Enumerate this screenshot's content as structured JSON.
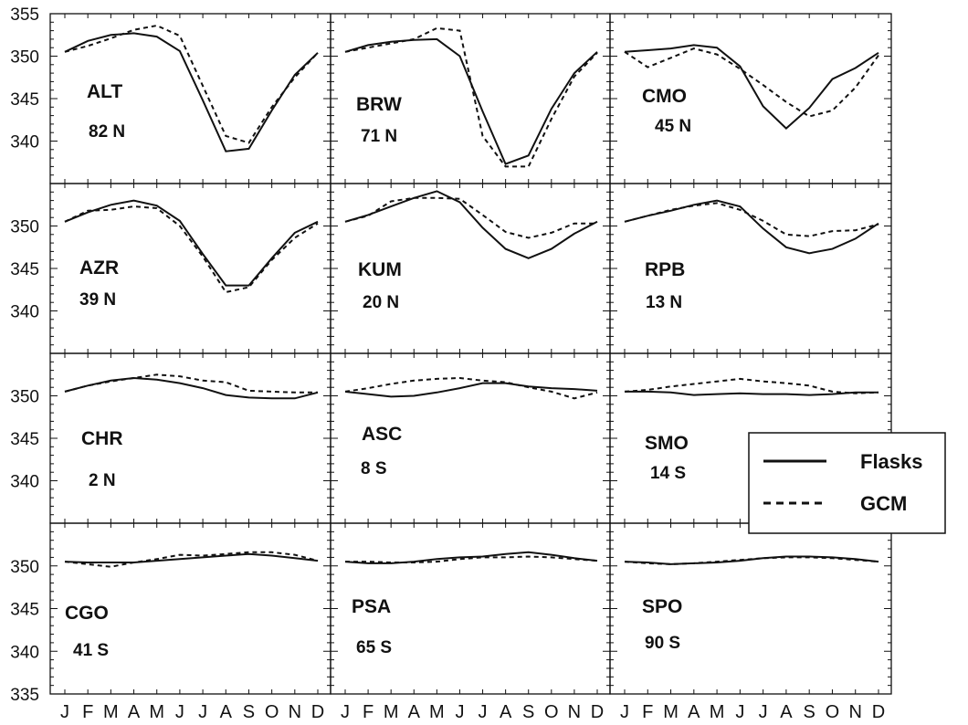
{
  "chart_data": {
    "type": "line",
    "layout": "4 rows x 3 columns of small-multiple panels",
    "months": [
      "J",
      "F",
      "M",
      "A",
      "M",
      "J",
      "J",
      "A",
      "S",
      "O",
      "N",
      "D"
    ],
    "ylim": [
      335,
      355
    ],
    "yticks": [
      335,
      340,
      345,
      350,
      355
    ],
    "grid": false,
    "legend": {
      "placement": "right, over SMO/SPO panels",
      "entries": [
        {
          "label": "Flasks",
          "style": "solid"
        },
        {
          "label": "GCM",
          "style": "dashed"
        }
      ]
    },
    "panels": [
      {
        "site": "ALT",
        "lat": "82 N",
        "flasks": [
          350.5,
          351.8,
          352.5,
          352.7,
          352.3,
          350.6,
          344.8,
          338.8,
          339.1,
          343.6,
          347.8,
          350.4
        ],
        "gcm": [
          350.5,
          351.2,
          352.1,
          353.1,
          353.6,
          352.4,
          346.5,
          340.6,
          339.8,
          344.0,
          347.5,
          350.4
        ]
      },
      {
        "site": "BRW",
        "lat": "71 N",
        "flasks": [
          350.5,
          351.3,
          351.7,
          351.9,
          352.0,
          350.0,
          343.5,
          337.3,
          338.3,
          343.8,
          348.0,
          350.5
        ],
        "gcm": [
          350.5,
          351.0,
          351.5,
          352.0,
          353.3,
          353.0,
          340.6,
          337.0,
          337.0,
          342.6,
          347.6,
          350.4
        ]
      },
      {
        "site": "CMO",
        "lat": "45 N",
        "flasks": [
          350.5,
          350.7,
          350.9,
          351.3,
          351.0,
          348.8,
          344.1,
          341.5,
          343.9,
          347.3,
          348.6,
          350.4
        ],
        "gcm": [
          350.5,
          348.7,
          349.8,
          350.9,
          350.2,
          348.5,
          346.6,
          344.6,
          342.9,
          343.6,
          346.3,
          350.1
        ]
      },
      {
        "site": "AZR",
        "lat": "39 N",
        "flasks": [
          350.5,
          351.6,
          352.5,
          353.0,
          352.4,
          350.6,
          346.7,
          343.0,
          343.0,
          346.2,
          349.2,
          350.5
        ],
        "gcm": [
          350.5,
          351.8,
          351.9,
          352.3,
          352.1,
          350.0,
          346.4,
          342.2,
          342.8,
          346.0,
          348.6,
          350.3
        ]
      },
      {
        "site": "KUM",
        "lat": "20 N",
        "flasks": [
          350.5,
          351.3,
          352.3,
          353.3,
          354.1,
          352.8,
          349.8,
          347.3,
          346.2,
          347.3,
          349.1,
          350.5
        ],
        "gcm": [
          350.5,
          351.2,
          352.9,
          353.3,
          353.3,
          353.2,
          351.3,
          349.3,
          348.6,
          349.2,
          350.3,
          350.3
        ]
      },
      {
        "site": "RPB",
        "lat": "13 N",
        "flasks": [
          350.5,
          351.2,
          351.8,
          352.5,
          353.0,
          352.3,
          349.7,
          347.5,
          346.8,
          347.3,
          348.5,
          350.3
        ],
        "gcm": [
          350.5,
          351.2,
          351.9,
          352.4,
          352.7,
          351.9,
          350.6,
          349.0,
          348.8,
          349.4,
          349.5,
          350.2
        ]
      },
      {
        "site": "CHR",
        "lat": "2 N",
        "flasks": [
          350.5,
          351.2,
          351.8,
          352.1,
          351.9,
          351.5,
          350.9,
          350.1,
          349.8,
          349.7,
          349.7,
          350.4
        ],
        "gcm": [
          350.5,
          351.2,
          351.7,
          352.1,
          352.5,
          352.3,
          351.8,
          351.6,
          350.6,
          350.5,
          350.4,
          350.4
        ]
      },
      {
        "site": "ASC",
        "lat": "8 S",
        "flasks": [
          350.5,
          350.2,
          349.9,
          350.0,
          350.4,
          350.9,
          351.5,
          351.5,
          351.1,
          350.9,
          350.8,
          350.6
        ],
        "gcm": [
          350.5,
          350.9,
          351.4,
          351.8,
          352.0,
          352.1,
          351.8,
          351.6,
          351.0,
          350.5,
          349.7,
          350.4
        ]
      },
      {
        "site": "SMO",
        "lat": "14 S",
        "flasks": [
          350.5,
          350.5,
          350.4,
          350.1,
          350.2,
          350.3,
          350.2,
          350.2,
          350.1,
          350.2,
          350.4,
          350.4
        ],
        "gcm": [
          350.5,
          350.7,
          351.1,
          351.4,
          351.7,
          352.0,
          351.7,
          351.5,
          351.2,
          350.5,
          350.3,
          350.4
        ]
      },
      {
        "site": "CGO",
        "lat": "41 S",
        "flasks": [
          350.5,
          350.4,
          350.4,
          350.4,
          350.6,
          350.8,
          351.0,
          351.2,
          351.4,
          351.2,
          350.9,
          350.6
        ],
        "gcm": [
          350.5,
          350.2,
          349.9,
          350.4,
          350.8,
          351.3,
          351.2,
          351.4,
          351.6,
          351.6,
          351.3,
          350.6
        ]
      },
      {
        "site": "PSA",
        "lat": "65 S",
        "flasks": [
          350.5,
          350.3,
          350.3,
          350.5,
          350.8,
          351.0,
          351.1,
          351.4,
          351.6,
          351.3,
          350.9,
          350.6
        ],
        "gcm": [
          350.5,
          350.5,
          350.4,
          350.4,
          350.5,
          350.8,
          351.0,
          351.0,
          351.1,
          351.0,
          350.8,
          350.6
        ]
      },
      {
        "site": "SPO",
        "lat": "90 S",
        "flasks": [
          350.5,
          350.4,
          350.2,
          350.3,
          350.4,
          350.6,
          350.9,
          351.1,
          351.1,
          351.0,
          350.8,
          350.5
        ],
        "gcm": [
          350.5,
          350.3,
          350.2,
          350.3,
          350.5,
          350.7,
          350.9,
          351.0,
          351.0,
          350.9,
          350.7,
          350.5
        ]
      }
    ]
  }
}
